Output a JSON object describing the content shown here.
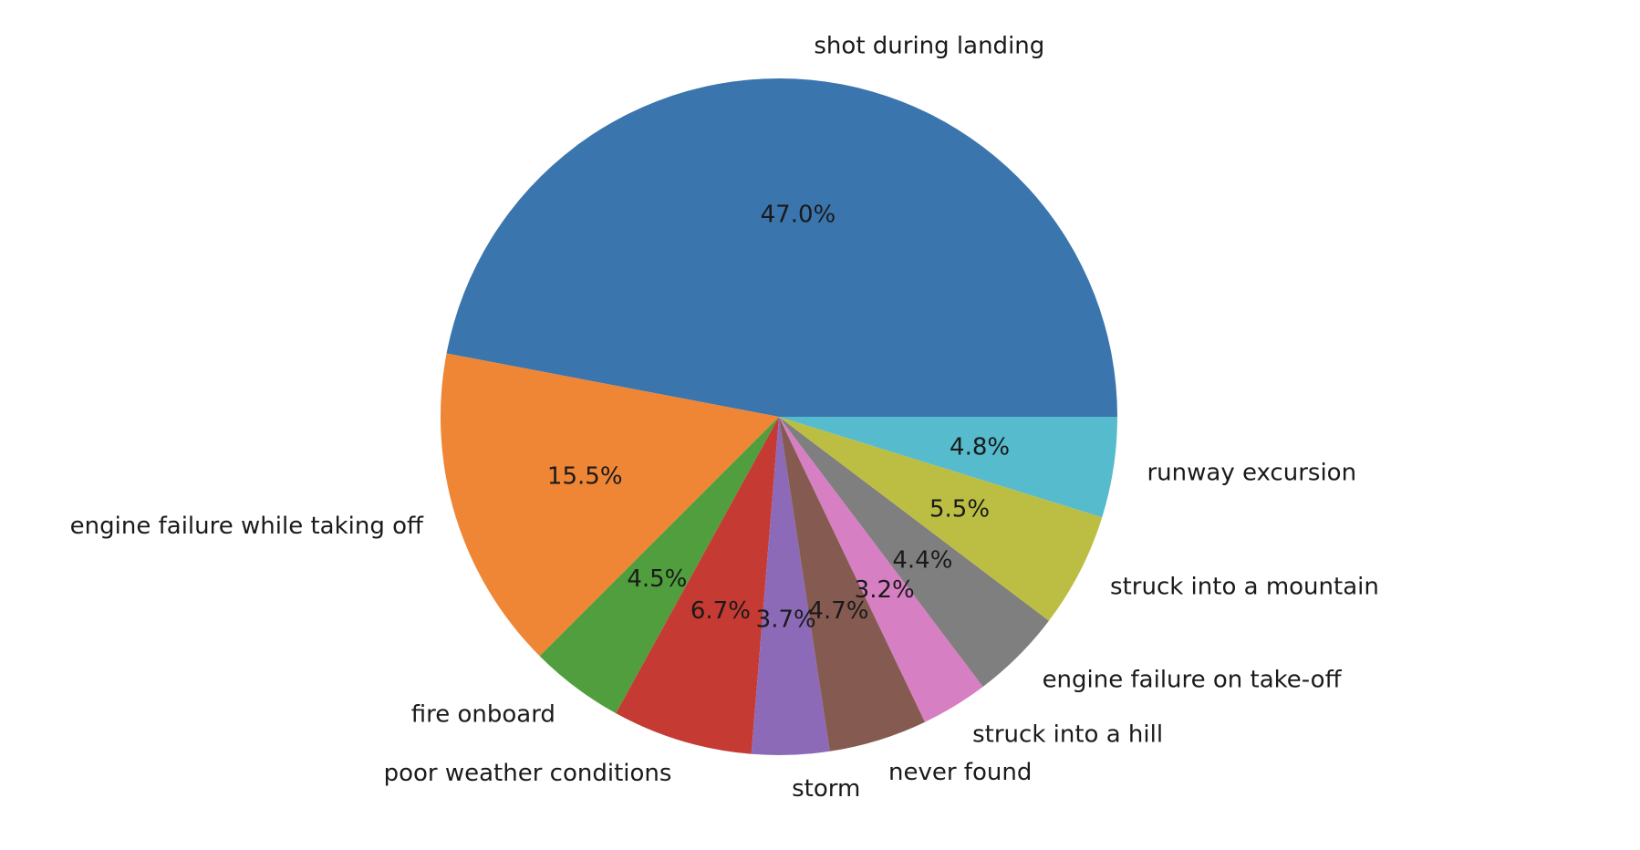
{
  "chart_data": {
    "type": "pie",
    "title": "",
    "start_angle_deg": 0,
    "direction": "counterclockwise",
    "slices": [
      {
        "label": "shot during landing",
        "value": 47.0,
        "pct_label": "47.0%",
        "color": "#3a75ae"
      },
      {
        "label": "engine failure while taking off",
        "value": 15.5,
        "pct_label": "15.5%",
        "color": "#ee8636"
      },
      {
        "label": "fire onboard",
        "value": 4.5,
        "pct_label": "4.5%",
        "color": "#519e3e"
      },
      {
        "label": "poor weather conditions",
        "value": 6.7,
        "pct_label": "6.7%",
        "color": "#c53a32"
      },
      {
        "label": "storm",
        "value": 3.7,
        "pct_label": "3.7%",
        "color": "#8d6ab8"
      },
      {
        "label": "never found",
        "value": 4.7,
        "pct_label": "4.7%",
        "color": "#855b51"
      },
      {
        "label": "struck into a hill",
        "value": 3.2,
        "pct_label": "3.2%",
        "color": "#d67fc2"
      },
      {
        "label": "engine failure on take-off",
        "value": 4.4,
        "pct_label": "4.4%",
        "color": "#7f7f7f"
      },
      {
        "label": "struck into a mountain",
        "value": 5.5,
        "pct_label": "5.5%",
        "color": "#bcbe44"
      },
      {
        "label": "runway excursion",
        "value": 4.8,
        "pct_label": "4.8%",
        "color": "#56bbcc"
      }
    ]
  }
}
